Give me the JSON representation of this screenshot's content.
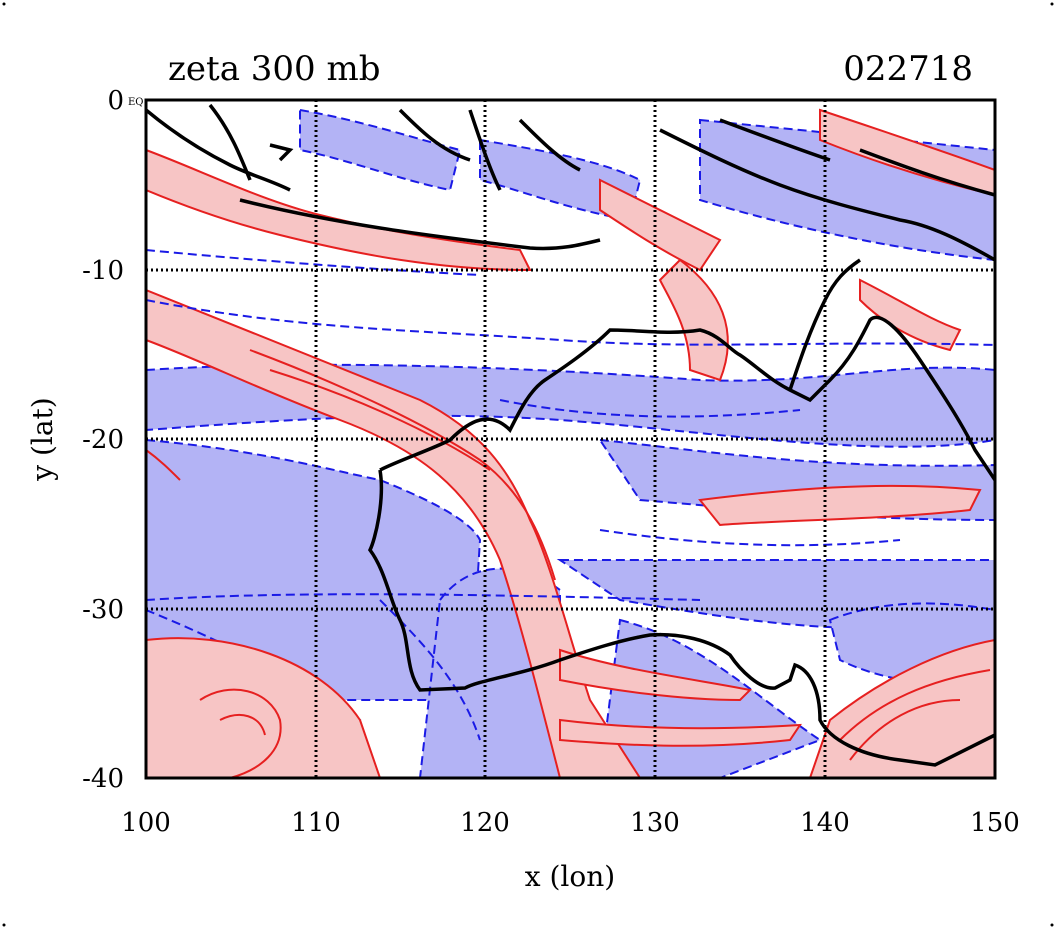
{
  "chart_data": {
    "type": "contour",
    "title": "zeta 300 mb",
    "date_label": "022718",
    "xlabel": "x (lon)",
    "ylabel": "y (lat)",
    "xlim": [
      100,
      150
    ],
    "ylim": [
      -40,
      0
    ],
    "xticks": [
      "100",
      "110",
      "120",
      "130",
      "140",
      "150"
    ],
    "yticks": [
      "0",
      "-10",
      "-20",
      "-30",
      "-40"
    ],
    "corner_label": "EQ",
    "grid": true,
    "colors": {
      "positive_fill": "#f7c5c5",
      "positive_line": "#e62020",
      "negative_fill": "#b3b3f5",
      "negative_line": "#1a1ae6",
      "coast": "#000000",
      "grid": "#000000"
    }
  }
}
